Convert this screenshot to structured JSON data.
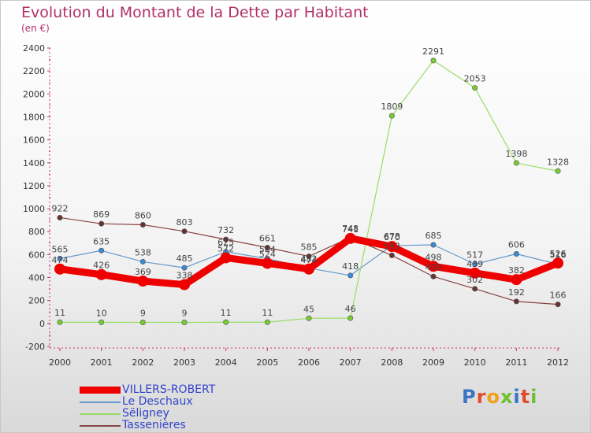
{
  "title": "Evolution du Montant de la Dette par Habitant",
  "subtitle": "(en €)",
  "logo": {
    "text": "Proxiti",
    "letter_colors": [
      "#3a74c4",
      "#e04c2a",
      "#f2a019",
      "#6fbf2f",
      "#3a74c4",
      "#e04c2a",
      "#6fbf2f"
    ]
  },
  "chart_data": {
    "type": "line",
    "categories": [
      "2000",
      "2001",
      "2002",
      "2003",
      "2004",
      "2005",
      "2006",
      "2007",
      "2008",
      "2009",
      "2010",
      "2011",
      "2012"
    ],
    "ylim": [
      -200,
      2400
    ],
    "yticks": [
      -200,
      0,
      200,
      400,
      600,
      800,
      1000,
      1200,
      1400,
      1600,
      1800,
      2000,
      2200,
      2400
    ],
    "grid": false,
    "legend_position": "bottom-left",
    "series": [
      {
        "name": "VILLERS-ROBERT",
        "color": "#ee0000",
        "marker_color": "#ee0000",
        "thick": true,
        "values": [
          474,
          426,
          369,
          338,
          572,
          524,
          474,
          741,
          670,
          498,
          439,
          382,
          526
        ],
        "labels": [
          "474",
          "426",
          "369",
          "338",
          "572",
          "524",
          "474",
          "741",
          "670",
          "498",
          "439",
          "382",
          "526"
        ]
      },
      {
        "name": "Le Deschaux",
        "color": "#6699cc",
        "marker_color": "#3a8ad4",
        "thick": false,
        "values": [
          565,
          635,
          538,
          485,
          625,
          564,
          482,
          418,
          678,
          685,
          517,
          606,
          516
        ],
        "labels": [
          "565",
          "635",
          "538",
          "485",
          "625",
          "564",
          "482",
          "418",
          "678",
          "685",
          "517",
          "606",
          "516"
        ]
      },
      {
        "name": "Sëligney",
        "color": "#99dd66",
        "marker_color": "#77cc33",
        "thick": false,
        "values": [
          11,
          10,
          9,
          9,
          11,
          11,
          45,
          46,
          1809,
          2291,
          2053,
          1398,
          1328
        ],
        "labels": [
          "11",
          "10",
          "9",
          "9",
          "11",
          "11",
          "45",
          "46",
          "1809",
          "2291",
          "2053",
          "1398",
          "1328"
        ]
      },
      {
        "name": "Tassenières",
        "color": "#884444",
        "marker_color": "#663333",
        "thick": false,
        "values": [
          922,
          869,
          860,
          803,
          732,
          661,
          585,
          748,
          593,
          409,
          302,
          192,
          166
        ],
        "labels": [
          "922",
          "869",
          "860",
          "803",
          "732",
          "661",
          "585",
          "748",
          "593",
          "409",
          "302",
          "192",
          "166"
        ]
      }
    ]
  }
}
